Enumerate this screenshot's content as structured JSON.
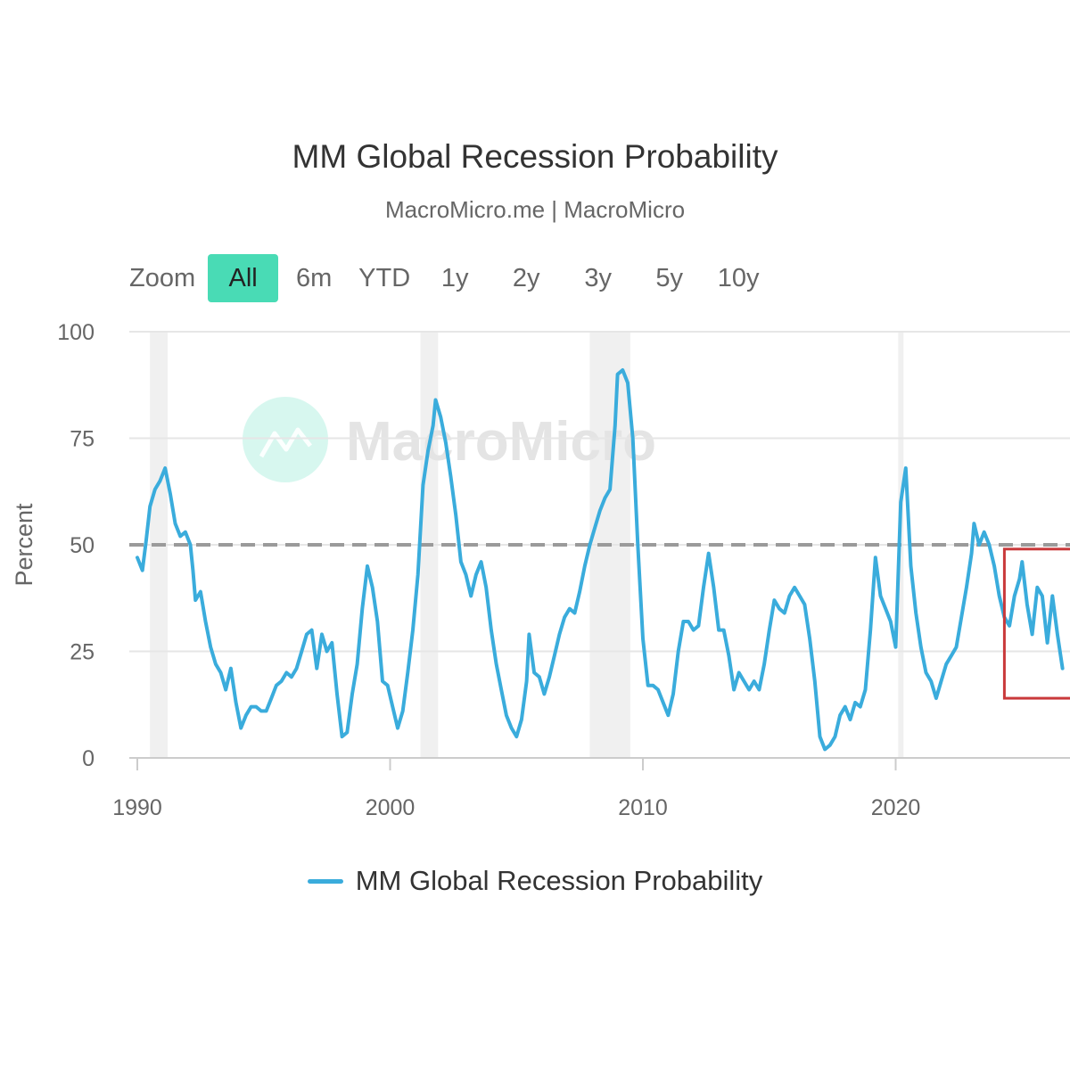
{
  "zoom": {
    "label": "Zoom",
    "selected": "All",
    "buttons": [
      "All",
      "6m",
      "YTD",
      "1y",
      "2y",
      "3y",
      "5y",
      "10y"
    ]
  },
  "watermark": {
    "text": "MacroMicro"
  },
  "colors": {
    "series": "#3aacdc",
    "threshold": "#9a9a9a",
    "recession_band": "#f0f0f0",
    "highlight_box": "#c9393b",
    "zoom_active": "#49dbb5"
  },
  "chart_data": {
    "type": "line",
    "title": "MM Global Recession Probability",
    "subtitle": "MacroMicro.me | MacroMicro",
    "ylabel": "Percent",
    "xlabel": "",
    "ylim": [
      0,
      100
    ],
    "xlim": [
      1990,
      2026.7
    ],
    "y_ticks": [
      0,
      25,
      50,
      75,
      100
    ],
    "x_ticks": [
      1990,
      2000,
      2010,
      2020
    ],
    "legend": {
      "position": "bottom-center",
      "entries": [
        "MM Global Recession Probability"
      ]
    },
    "threshold_line": {
      "y": 50,
      "style": "dashed"
    },
    "recession_bands": [
      [
        1990.5,
        1991.2
      ],
      [
        2001.2,
        2001.9
      ],
      [
        2007.9,
        2009.5
      ],
      [
        2020.1,
        2020.3
      ]
    ],
    "highlight_box": {
      "x": [
        2024.3,
        2027.0
      ],
      "y": [
        14,
        49
      ]
    },
    "series": [
      {
        "name": "MM Global Recession Probability",
        "points": [
          [
            1990.0,
            47
          ],
          [
            1990.2,
            44
          ],
          [
            1990.35,
            51
          ],
          [
            1990.5,
            59
          ],
          [
            1990.7,
            63
          ],
          [
            1990.9,
            65
          ],
          [
            1991.1,
            68
          ],
          [
            1991.3,
            62
          ],
          [
            1991.5,
            55
          ],
          [
            1991.7,
            52
          ],
          [
            1991.9,
            53
          ],
          [
            1992.1,
            50
          ],
          [
            1992.2,
            44
          ],
          [
            1992.3,
            37
          ],
          [
            1992.5,
            39
          ],
          [
            1992.7,
            32
          ],
          [
            1992.9,
            26
          ],
          [
            1993.1,
            22
          ],
          [
            1993.3,
            20
          ],
          [
            1993.5,
            16
          ],
          [
            1993.7,
            21
          ],
          [
            1993.9,
            13
          ],
          [
            1994.1,
            7
          ],
          [
            1994.3,
            10
          ],
          [
            1994.5,
            12
          ],
          [
            1994.7,
            12
          ],
          [
            1994.9,
            11
          ],
          [
            1995.1,
            11
          ],
          [
            1995.3,
            14
          ],
          [
            1995.5,
            17
          ],
          [
            1995.7,
            18
          ],
          [
            1995.9,
            20
          ],
          [
            1996.1,
            19
          ],
          [
            1996.3,
            21
          ],
          [
            1996.5,
            25
          ],
          [
            1996.7,
            29
          ],
          [
            1996.9,
            30
          ],
          [
            1997.1,
            21
          ],
          [
            1997.3,
            29
          ],
          [
            1997.5,
            25
          ],
          [
            1997.7,
            27
          ],
          [
            1997.9,
            15
          ],
          [
            1998.1,
            5
          ],
          [
            1998.3,
            6
          ],
          [
            1998.5,
            15
          ],
          [
            1998.7,
            22
          ],
          [
            1998.9,
            35
          ],
          [
            1999.1,
            45
          ],
          [
            1999.3,
            40
          ],
          [
            1999.5,
            32
          ],
          [
            1999.7,
            18
          ],
          [
            1999.9,
            17
          ],
          [
            2000.1,
            12
          ],
          [
            2000.3,
            7
          ],
          [
            2000.5,
            11
          ],
          [
            2000.7,
            20
          ],
          [
            2000.9,
            30
          ],
          [
            2001.1,
            43
          ],
          [
            2001.3,
            64
          ],
          [
            2001.5,
            72
          ],
          [
            2001.7,
            78
          ],
          [
            2001.8,
            84
          ],
          [
            2002.0,
            80
          ],
          [
            2002.2,
            74
          ],
          [
            2002.4,
            66
          ],
          [
            2002.6,
            57
          ],
          [
            2002.8,
            46
          ],
          [
            2003.0,
            43
          ],
          [
            2003.2,
            38
          ],
          [
            2003.4,
            43
          ],
          [
            2003.6,
            46
          ],
          [
            2003.8,
            40
          ],
          [
            2004.0,
            30
          ],
          [
            2004.2,
            22
          ],
          [
            2004.4,
            16
          ],
          [
            2004.6,
            10
          ],
          [
            2004.8,
            7
          ],
          [
            2005.0,
            5
          ],
          [
            2005.2,
            9
          ],
          [
            2005.4,
            18
          ],
          [
            2005.5,
            29
          ],
          [
            2005.7,
            20
          ],
          [
            2005.9,
            19
          ],
          [
            2006.1,
            15
          ],
          [
            2006.3,
            19
          ],
          [
            2006.5,
            24
          ],
          [
            2006.7,
            29
          ],
          [
            2006.9,
            33
          ],
          [
            2007.1,
            35
          ],
          [
            2007.3,
            34
          ],
          [
            2007.5,
            39
          ],
          [
            2007.7,
            45
          ],
          [
            2007.9,
            50
          ],
          [
            2008.1,
            54
          ],
          [
            2008.3,
            58
          ],
          [
            2008.5,
            61
          ],
          [
            2008.7,
            63
          ],
          [
            2008.9,
            78
          ],
          [
            2009.0,
            90
          ],
          [
            2009.2,
            91
          ],
          [
            2009.4,
            88
          ],
          [
            2009.6,
            75
          ],
          [
            2009.8,
            50
          ],
          [
            2010.0,
            28
          ],
          [
            2010.2,
            17
          ],
          [
            2010.4,
            17
          ],
          [
            2010.6,
            16
          ],
          [
            2010.8,
            13
          ],
          [
            2011.0,
            10
          ],
          [
            2011.2,
            15
          ],
          [
            2011.4,
            25
          ],
          [
            2011.6,
            32
          ],
          [
            2011.8,
            32
          ],
          [
            2012.0,
            30
          ],
          [
            2012.2,
            31
          ],
          [
            2012.4,
            40
          ],
          [
            2012.6,
            48
          ],
          [
            2012.8,
            40
          ],
          [
            2013.0,
            30
          ],
          [
            2013.2,
            30
          ],
          [
            2013.4,
            24
          ],
          [
            2013.6,
            16
          ],
          [
            2013.8,
            20
          ],
          [
            2014.0,
            18
          ],
          [
            2014.2,
            16
          ],
          [
            2014.4,
            18
          ],
          [
            2014.6,
            16
          ],
          [
            2014.8,
            22
          ],
          [
            2015.0,
            30
          ],
          [
            2015.2,
            37
          ],
          [
            2015.4,
            35
          ],
          [
            2015.6,
            34
          ],
          [
            2015.8,
            38
          ],
          [
            2016.0,
            40
          ],
          [
            2016.2,
            38
          ],
          [
            2016.4,
            36
          ],
          [
            2016.6,
            28
          ],
          [
            2016.8,
            18
          ],
          [
            2017.0,
            5
          ],
          [
            2017.2,
            2
          ],
          [
            2017.4,
            3
          ],
          [
            2017.6,
            5
          ],
          [
            2017.8,
            10
          ],
          [
            2018.0,
            12
          ],
          [
            2018.2,
            9
          ],
          [
            2018.4,
            13
          ],
          [
            2018.6,
            12
          ],
          [
            2018.8,
            16
          ],
          [
            2019.0,
            30
          ],
          [
            2019.2,
            47
          ],
          [
            2019.4,
            38
          ],
          [
            2019.6,
            35
          ],
          [
            2019.8,
            32
          ],
          [
            2020.0,
            26
          ],
          [
            2020.2,
            60
          ],
          [
            2020.4,
            68
          ],
          [
            2020.6,
            45
          ],
          [
            2020.8,
            34
          ],
          [
            2021.0,
            26
          ],
          [
            2021.2,
            20
          ],
          [
            2021.4,
            18
          ],
          [
            2021.6,
            14
          ],
          [
            2021.8,
            18
          ],
          [
            2022.0,
            22
          ],
          [
            2022.2,
            24
          ],
          [
            2022.4,
            26
          ],
          [
            2022.6,
            33
          ],
          [
            2022.8,
            40
          ],
          [
            2023.0,
            48
          ],
          [
            2023.1,
            55
          ],
          [
            2023.3,
            50
          ],
          [
            2023.5,
            53
          ],
          [
            2023.7,
            50
          ],
          [
            2023.9,
            45
          ],
          [
            2024.1,
            38
          ],
          [
            2024.3,
            33
          ],
          [
            2024.5,
            31
          ],
          [
            2024.7,
            38
          ],
          [
            2024.9,
            42
          ],
          [
            2025.0,
            46
          ],
          [
            2025.2,
            36
          ],
          [
            2025.4,
            29
          ],
          [
            2025.6,
            40
          ],
          [
            2025.8,
            38
          ],
          [
            2026.0,
            27
          ],
          [
            2026.2,
            38
          ],
          [
            2026.4,
            29
          ],
          [
            2026.6,
            21
          ]
        ]
      }
    ]
  }
}
